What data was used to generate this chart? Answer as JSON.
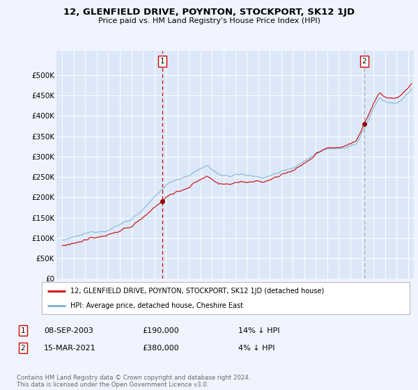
{
  "title": "12, GLENFIELD DRIVE, POYNTON, STOCKPORT, SK12 1JD",
  "subtitle": "Price paid vs. HM Land Registry's House Price Index (HPI)",
  "background_color": "#f0f4ff",
  "plot_bg_color": "#dce8f8",
  "ylim": [
    0,
    560000
  ],
  "yticks": [
    0,
    50000,
    100000,
    150000,
    200000,
    250000,
    300000,
    350000,
    400000,
    450000,
    500000
  ],
  "xlim_start": 1994.5,
  "xlim_end": 2025.5,
  "sale1_date": 2003.69,
  "sale1_price": 190000,
  "sale2_date": 2021.21,
  "sale2_price": 380000,
  "legend_line1": "12, GLENFIELD DRIVE, POYNTON, STOCKPORT, SK12 1JD (detached house)",
  "legend_line2": "HPI: Average price, detached house, Cheshire East",
  "footer": "Contains HM Land Registry data © Crown copyright and database right 2024.\nThis data is licensed under the Open Government Licence v3.0.",
  "line_color_red": "#cc0000",
  "line_color_blue": "#7ab0d4",
  "sale2_vline_color": "#aaaaaa"
}
